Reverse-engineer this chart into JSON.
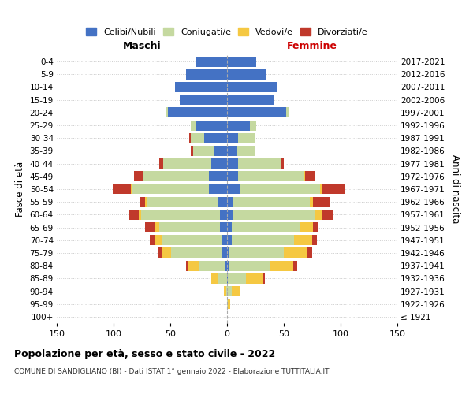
{
  "age_groups": [
    "100+",
    "95-99",
    "90-94",
    "85-89",
    "80-84",
    "75-79",
    "70-74",
    "65-69",
    "60-64",
    "55-59",
    "50-54",
    "45-49",
    "40-44",
    "35-39",
    "30-34",
    "25-29",
    "20-24",
    "15-19",
    "10-14",
    "5-9",
    "0-4"
  ],
  "birth_years": [
    "≤ 1921",
    "1922-1926",
    "1927-1931",
    "1932-1936",
    "1937-1941",
    "1942-1946",
    "1947-1951",
    "1952-1956",
    "1957-1961",
    "1962-1966",
    "1967-1971",
    "1972-1976",
    "1977-1981",
    "1982-1986",
    "1987-1991",
    "1992-1996",
    "1997-2001",
    "2002-2006",
    "2007-2011",
    "2012-2016",
    "2017-2021"
  ],
  "colors": {
    "single": "#4472c4",
    "married": "#c5d9a0",
    "widowed": "#f5c842",
    "divorced": "#c0392b"
  },
  "maschi": {
    "single": [
      0,
      0,
      0,
      0,
      2,
      4,
      5,
      6,
      6,
      8,
      16,
      16,
      14,
      12,
      20,
      28,
      52,
      42,
      46,
      36,
      28
    ],
    "married": [
      0,
      0,
      1,
      8,
      22,
      45,
      52,
      54,
      70,
      62,
      68,
      58,
      42,
      18,
      12,
      4,
      2,
      0,
      0,
      0,
      0
    ],
    "widowed": [
      0,
      0,
      2,
      6,
      10,
      8,
      6,
      4,
      2,
      2,
      1,
      0,
      0,
      0,
      0,
      0,
      0,
      0,
      0,
      0,
      0
    ],
    "divorced": [
      0,
      0,
      0,
      0,
      2,
      4,
      5,
      8,
      8,
      5,
      16,
      8,
      4,
      2,
      1,
      0,
      0,
      0,
      0,
      0,
      0
    ]
  },
  "femmine": {
    "single": [
      0,
      0,
      0,
      1,
      2,
      2,
      4,
      4,
      5,
      5,
      12,
      10,
      10,
      8,
      10,
      20,
      52,
      42,
      44,
      34,
      26
    ],
    "married": [
      0,
      1,
      4,
      16,
      36,
      48,
      55,
      60,
      72,
      68,
      70,
      58,
      38,
      16,
      14,
      6,
      2,
      0,
      0,
      0,
      0
    ],
    "widowed": [
      0,
      2,
      8,
      14,
      20,
      20,
      16,
      12,
      6,
      3,
      2,
      1,
      0,
      0,
      0,
      0,
      0,
      0,
      0,
      0,
      0
    ],
    "divorced": [
      0,
      0,
      0,
      2,
      4,
      5,
      4,
      4,
      10,
      15,
      20,
      8,
      2,
      1,
      0,
      0,
      0,
      0,
      0,
      0,
      0
    ]
  },
  "xlim": 150,
  "title": "Popolazione per età, sesso e stato civile - 2022",
  "subtitle": "COMUNE DI SANDIGLIANO (BI) - Dati ISTAT 1° gennaio 2022 - Elaborazione TUTTITALIA.IT",
  "ylabel": "Fasce di età",
  "ylabel_right": "Anni di nascita",
  "legend_labels": [
    "Celibi/Nubili",
    "Coniugati/e",
    "Vedovi/e",
    "Divorziati/e"
  ],
  "maschi_label": "Maschi",
  "femmine_label": "Femmine"
}
